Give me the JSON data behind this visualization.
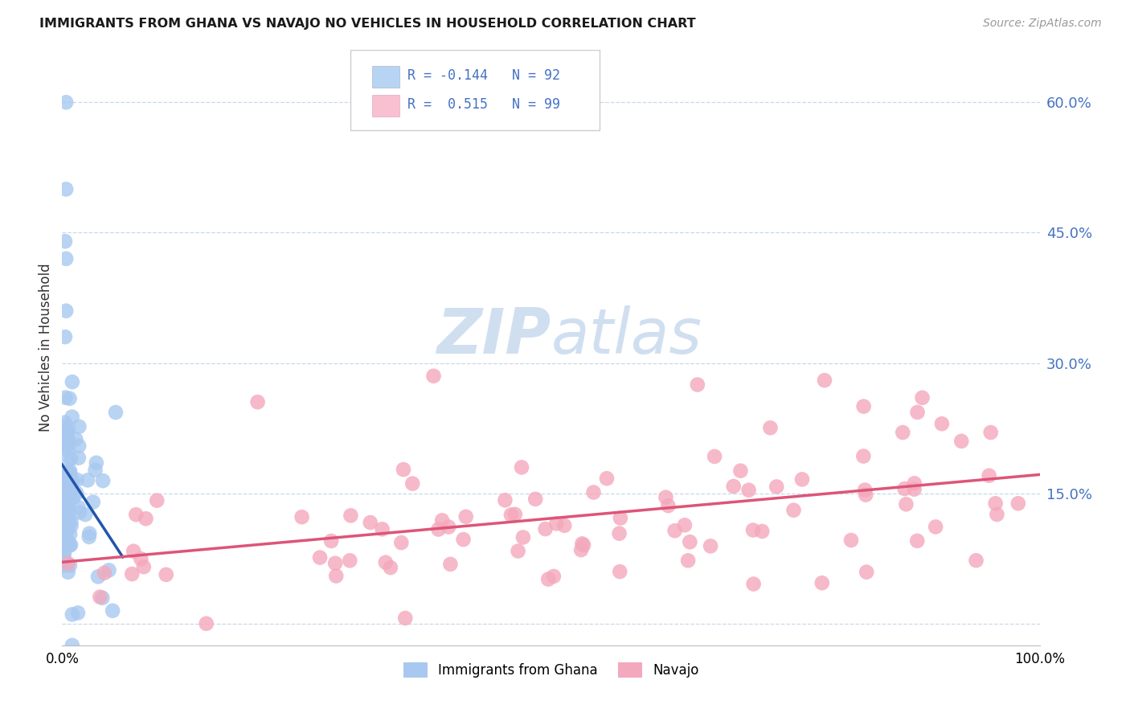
{
  "title": "IMMIGRANTS FROM GHANA VS NAVAJO NO VEHICLES IN HOUSEHOLD CORRELATION CHART",
  "source": "Source: ZipAtlas.com",
  "ylabel": "No Vehicles in Household",
  "y_ticks": [
    0.0,
    0.15,
    0.3,
    0.45,
    0.6
  ],
  "y_tick_labels": [
    "",
    "15.0%",
    "30.0%",
    "45.0%",
    "60.0%"
  ],
  "xlim": [
    0.0,
    1.0
  ],
  "ylim": [
    -0.025,
    0.66
  ],
  "blue_R": -0.144,
  "blue_N": 92,
  "pink_R": 0.515,
  "pink_N": 99,
  "blue_color": "#a8c8f0",
  "pink_color": "#f4a8bc",
  "blue_line_color": "#2255aa",
  "pink_line_color": "#dd5577",
  "legend_blue_face": "#b8d4f4",
  "legend_pink_face": "#f8c0d0",
  "watermark_color": "#d0dff0",
  "background_color": "#ffffff",
  "grid_color": "#c8d8e8",
  "seed": 123
}
